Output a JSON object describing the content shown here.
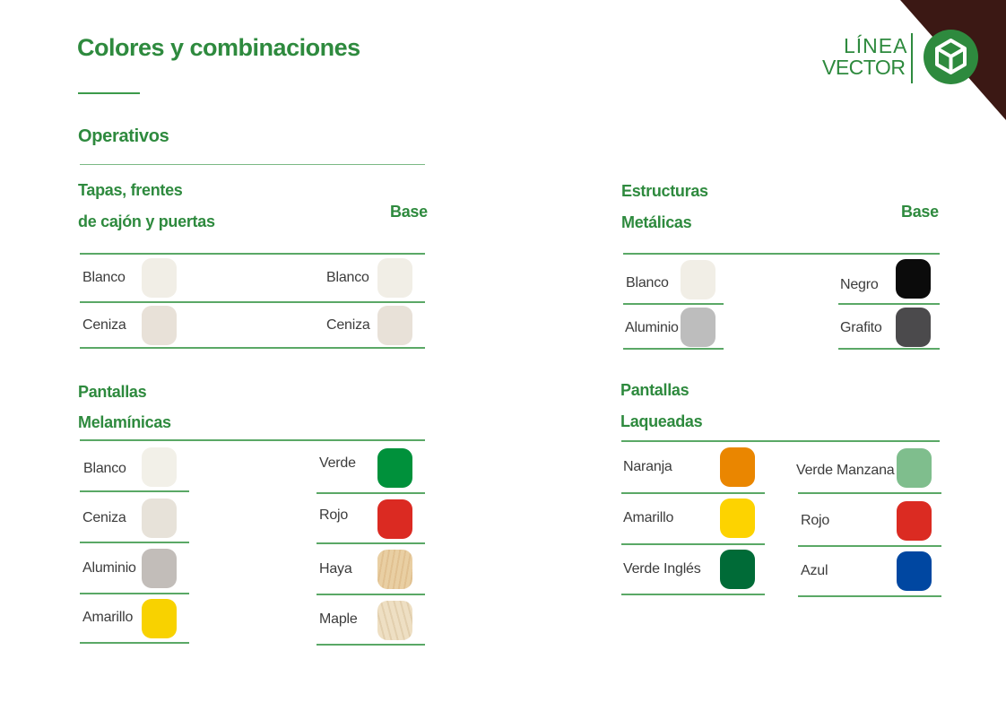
{
  "page_title": "Colores y combinaciones",
  "logo": {
    "line1": "LÍNEA",
    "line2": "VECTOR",
    "icon": "cube-icon"
  },
  "colors": {
    "accent_green": "#2e8a3e",
    "corner_brown": "#3b1814"
  },
  "operativos": {
    "title": "Operativos",
    "tapas": {
      "header_line1": "Tapas, frentes",
      "header_line2": "de cajón y puertas",
      "items": [
        {
          "label": "Blanco",
          "color": "#f1eee6"
        },
        {
          "label": "Ceniza",
          "color": "#e8e1d8"
        }
      ]
    },
    "base": {
      "header": "Base",
      "items": [
        {
          "label": "Blanco",
          "color": "#f1eee6"
        },
        {
          "label": "Ceniza",
          "color": "#e8e1d8"
        }
      ]
    },
    "pantallas_melaminicas": {
      "header_line1": "Pantallas",
      "header_line2": "Melamínicas",
      "left_items": [
        {
          "label": "Blanco",
          "color": "#f2f0e8"
        },
        {
          "label": "Ceniza",
          "color": "#e7e2d9"
        },
        {
          "label": "Aluminio",
          "color": "#c2bdb9"
        },
        {
          "label": "Amarillo",
          "color": "#f8d200"
        }
      ],
      "right_items": [
        {
          "label": "Verde",
          "color": "#00913b"
        },
        {
          "label": "Rojo",
          "color": "#db2a22"
        },
        {
          "label": "Haya",
          "color": "#e9cfa3"
        },
        {
          "label": "Maple",
          "color": "#eedfc3"
        }
      ]
    }
  },
  "estructuras": {
    "header_line1": "Estructuras",
    "header_line2": "Metálicas",
    "base_header": "Base",
    "left_items": [
      {
        "label": "Blanco",
        "color": "#f1eee6"
      },
      {
        "label": "Aluminio",
        "color": "#bdbdbd"
      }
    ],
    "right_items": [
      {
        "label": "Negro",
        "color": "#0b0b0b"
      },
      {
        "label": "Grafito",
        "color": "#4b4a4c"
      }
    ]
  },
  "pantallas_laqueadas": {
    "header_line1": "Pantallas",
    "header_line2": "Laqueadas",
    "left_items": [
      {
        "label": "Naranja",
        "color": "#ea8600"
      },
      {
        "label": "Amarillo",
        "color": "#fdd300"
      },
      {
        "label": "Verde Inglés",
        "color": "#006b37"
      }
    ],
    "right_items": [
      {
        "label": "Verde Manzana",
        "color": "#7fbe8d"
      },
      {
        "label": "Rojo",
        "color": "#db2b22"
      },
      {
        "label": "Azul",
        "color": "#0047a1"
      }
    ]
  }
}
